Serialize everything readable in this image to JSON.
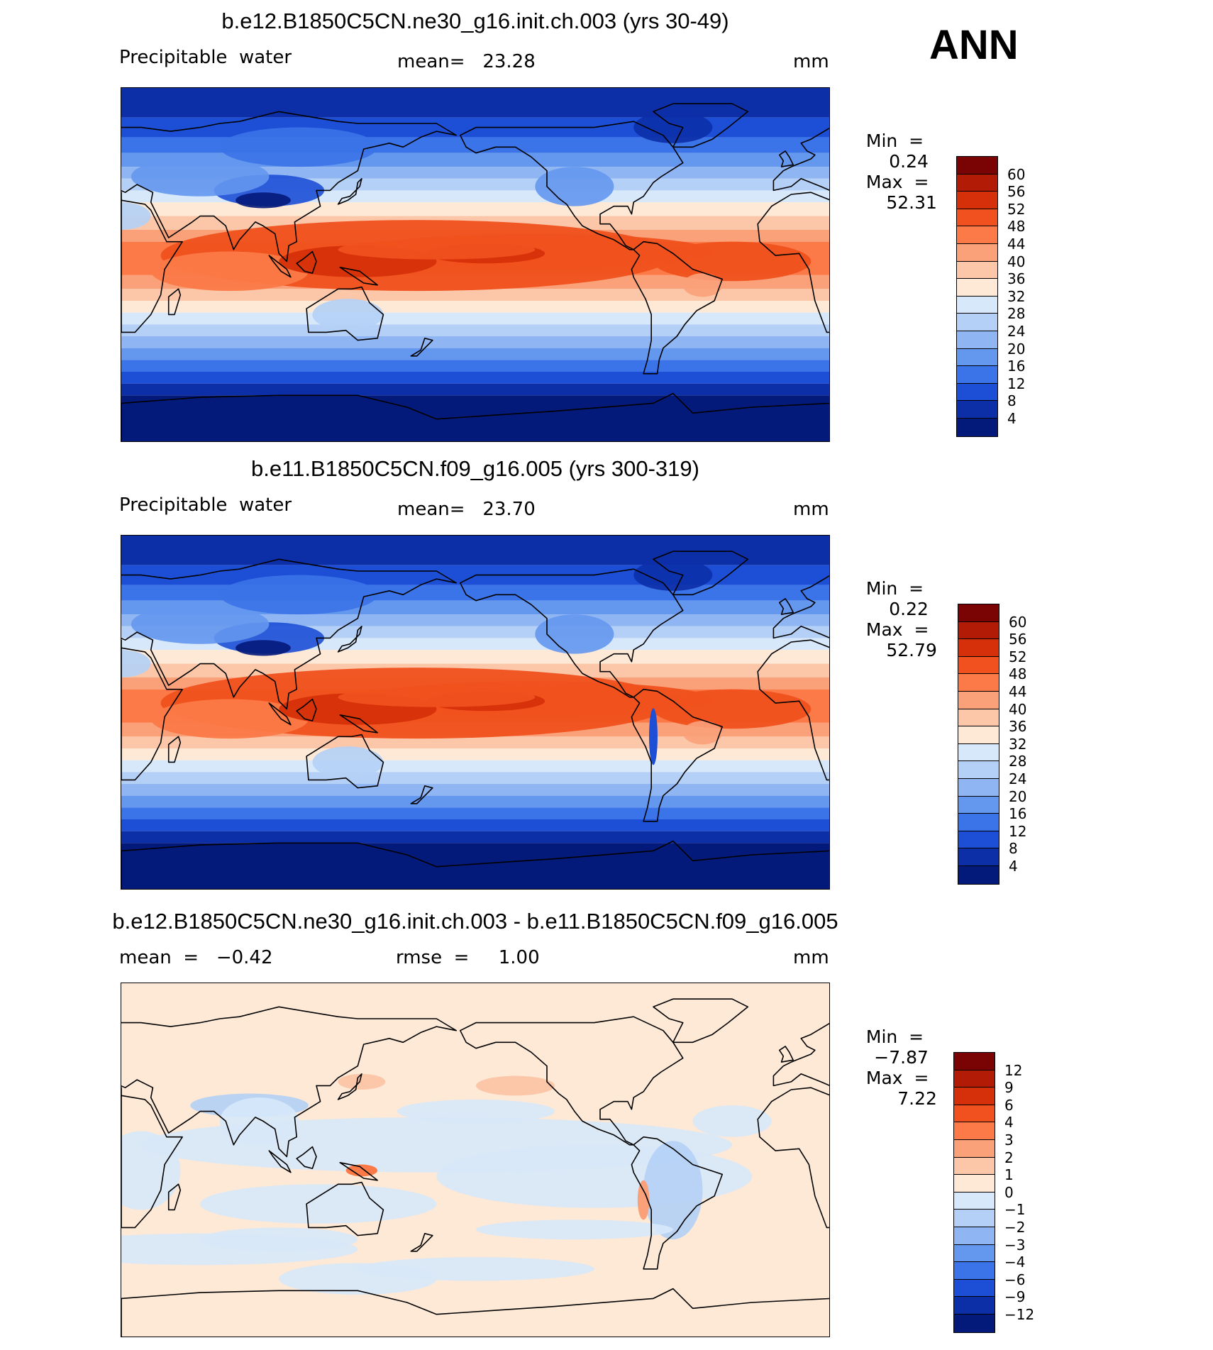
{
  "season": "ANN",
  "panels": [
    {
      "id": "top",
      "title": "b.e12.B1850C5CN.ne30_g16.init.ch.003 (yrs 30-49)",
      "left_label": "Precipitable  water",
      "mid_label": "mean=   23.28",
      "units": "mm",
      "min_label": "Min  =",
      "min_value": "0.24",
      "max_label": "Max  =",
      "max_value": "52.31"
    },
    {
      "id": "middle",
      "title": "b.e11.B1850C5CN.f09_g16.005 (yrs 300-319)",
      "left_label": "Precipitable  water",
      "mid_label": "mean=   23.70",
      "units": "mm",
      "min_label": "Min  =",
      "min_value": "0.22",
      "max_label": "Max  =",
      "max_value": "52.79"
    },
    {
      "id": "bottom",
      "title": "b.e12.B1850C5CN.ne30_g16.init.ch.003 - b.e11.B1850C5CN.f09_g16.005",
      "left_label": "mean  =   −0.42",
      "mid_label": "rmse  =     1.00",
      "units": "mm",
      "min_label": "Min  =",
      "min_value": "−7.87",
      "max_label": "Max  =",
      "max_value": "7.22"
    }
  ],
  "colorbar_abs": {
    "ticks": [
      "60",
      "56",
      "52",
      "48",
      "44",
      "40",
      "36",
      "32",
      "28",
      "24",
      "20",
      "16",
      "12",
      "8",
      "4"
    ],
    "colors": [
      "#7a0403",
      "#b21c06",
      "#d6300a",
      "#f0511e",
      "#fb7a48",
      "#fba17a",
      "#fcc7a8",
      "#fde9d6",
      "#d7e8fa",
      "#b4d0f6",
      "#8fb5f2",
      "#6497ee",
      "#3b73e8",
      "#1d4fd6",
      "#0c2fa8",
      "#041a7a"
    ]
  },
  "colorbar_diff": {
    "ticks": [
      "12",
      "9",
      "6",
      "4",
      "3",
      "2",
      "1",
      "0",
      "−1",
      "−2",
      "−3",
      "−4",
      "−6",
      "−9",
      "−12"
    ],
    "colors": [
      "#7a0403",
      "#b21c06",
      "#d6300a",
      "#f0511e",
      "#fb7a48",
      "#fba17a",
      "#fcc7a8",
      "#fde9d6",
      "#d7e8fa",
      "#b4d0f6",
      "#8fb5f2",
      "#6497ee",
      "#3b73e8",
      "#1d4fd6",
      "#0c2fa8",
      "#041a7a"
    ]
  },
  "chart_data": [
    {
      "type": "heatmap",
      "title": "b.e12.B1850C5CN.ne30_g16.init.ch.003 (yrs 30-49)",
      "variable": "Precipitable  water",
      "units": "mm",
      "mean": 23.28,
      "min": 0.24,
      "max": 52.31,
      "levels": [
        4,
        8,
        12,
        16,
        20,
        24,
        28,
        32,
        36,
        40,
        44,
        48,
        52,
        56,
        60
      ]
    },
    {
      "type": "heatmap",
      "title": "b.e11.B1850C5CN.f09_g16.005 (yrs 300-319)",
      "variable": "Precipitable  water",
      "units": "mm",
      "mean": 23.7,
      "min": 0.22,
      "max": 52.79,
      "levels": [
        4,
        8,
        12,
        16,
        20,
        24,
        28,
        32,
        36,
        40,
        44,
        48,
        52,
        56,
        60
      ]
    },
    {
      "type": "heatmap",
      "title": "b.e12.B1850C5CN.ne30_g16.init.ch.003 - b.e11.B1850C5CN.f09_g16.005",
      "units": "mm",
      "mean": -0.42,
      "rmse": 1.0,
      "min": -7.87,
      "max": 7.22,
      "levels": [
        -12,
        -9,
        -6,
        -4,
        -3,
        -2,
        -1,
        0,
        1,
        2,
        3,
        4,
        6,
        9,
        12
      ]
    }
  ]
}
